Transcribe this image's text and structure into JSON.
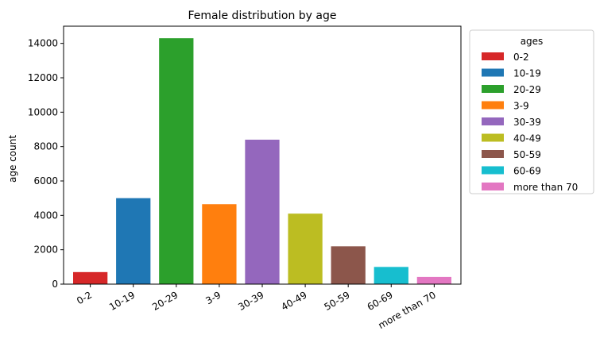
{
  "chart_data": {
    "type": "bar",
    "title": "Female distribution by age",
    "xlabel": "",
    "ylabel": "age count",
    "categories": [
      "0-2",
      "10-19",
      "20-29",
      "3-9",
      "30-39",
      "40-49",
      "50-59",
      "60-69",
      "more than 70"
    ],
    "values": [
      700,
      5000,
      14300,
      4650,
      8400,
      4100,
      2200,
      1000,
      420
    ],
    "colors": [
      "#d62728",
      "#1f77b4",
      "#2ca02c",
      "#ff7f0e",
      "#9467bd",
      "#bcbd22",
      "#8c564b",
      "#17becf",
      "#e377c2"
    ],
    "ylim": [
      0,
      15000
    ],
    "yticks": [
      0,
      2000,
      4000,
      6000,
      8000,
      10000,
      12000,
      14000
    ],
    "grid": false,
    "legend": {
      "title": "ages",
      "placement": "outside-right",
      "entries": [
        "0-2",
        "10-19",
        "20-29",
        "3-9",
        "30-39",
        "40-49",
        "50-59",
        "60-69",
        "more than 70"
      ]
    }
  }
}
